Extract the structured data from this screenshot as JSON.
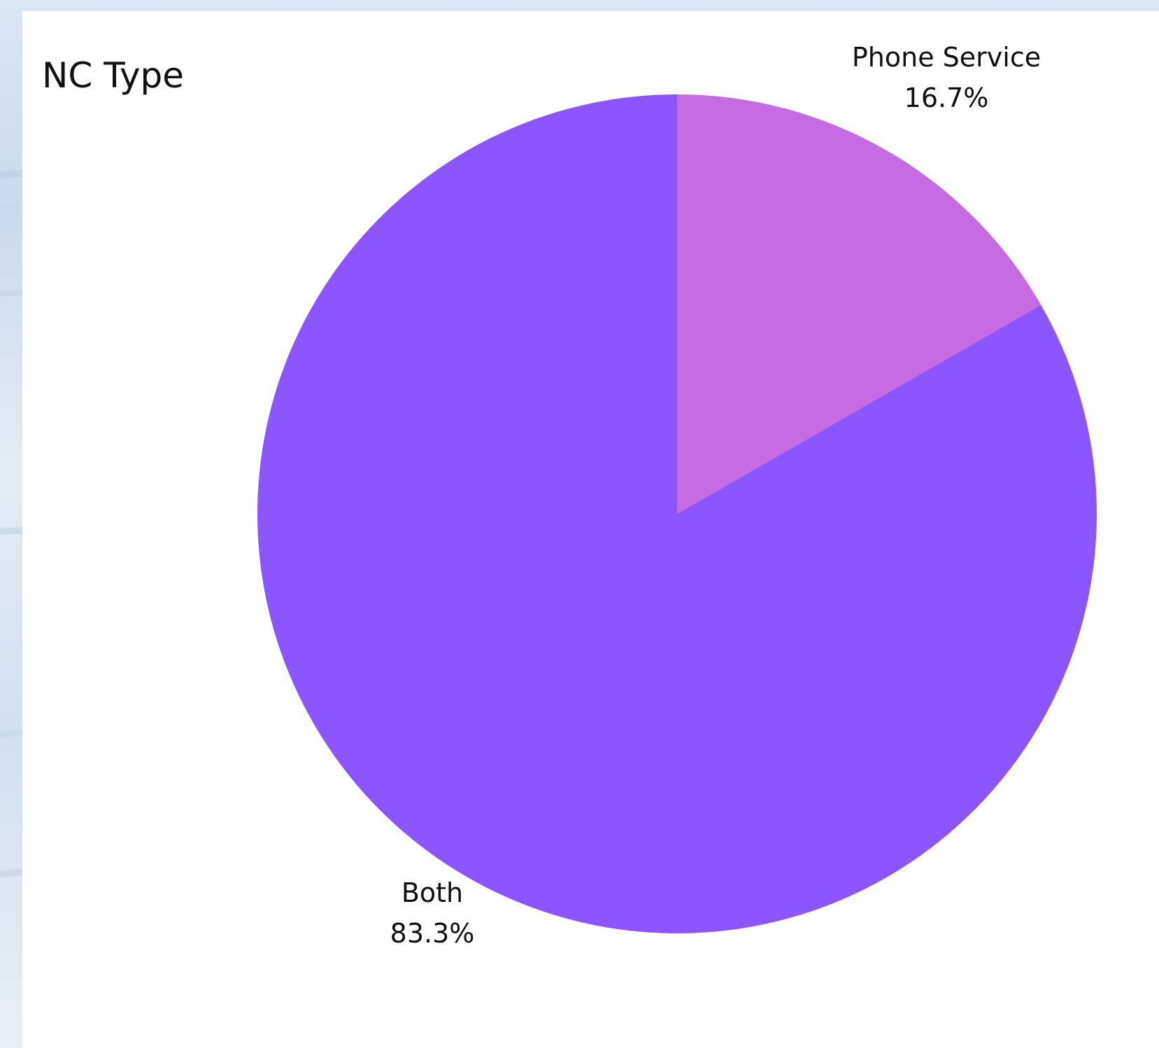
{
  "chart_data": {
    "type": "pie",
    "title": "NC Type",
    "slices": [
      {
        "label": "Phone Service",
        "percent_label": "16.7%",
        "value": 16.7,
        "color": "#c76be3"
      },
      {
        "label": "Both",
        "percent_label": "83.3%",
        "value": 83.3,
        "color": "#8b55ff"
      }
    ],
    "start_angle": "12 o'clock",
    "direction": "clockwise"
  }
}
